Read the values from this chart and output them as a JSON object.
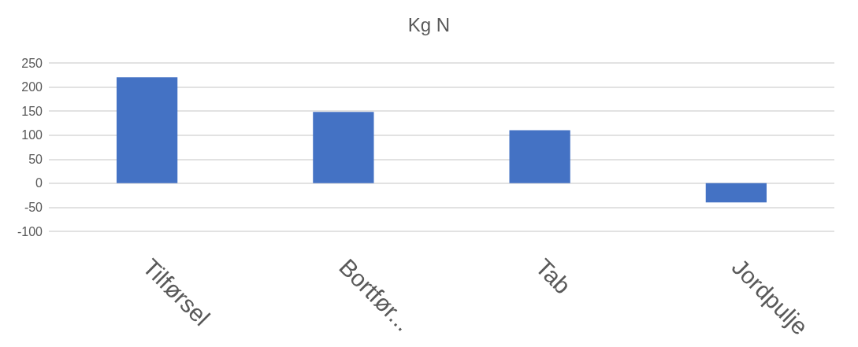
{
  "chart_data": {
    "type": "bar",
    "title": "Kg N",
    "categories": [
      "Tilførsel",
      "Bortfør...",
      "Tab",
      "Jordpulje"
    ],
    "values": [
      220,
      148,
      110,
      -40
    ],
    "color": "#4472c4",
    "ylim": [
      -100,
      250
    ],
    "yticks": [
      -100,
      -50,
      0,
      50,
      100,
      150,
      200,
      250
    ],
    "grid": "y"
  }
}
